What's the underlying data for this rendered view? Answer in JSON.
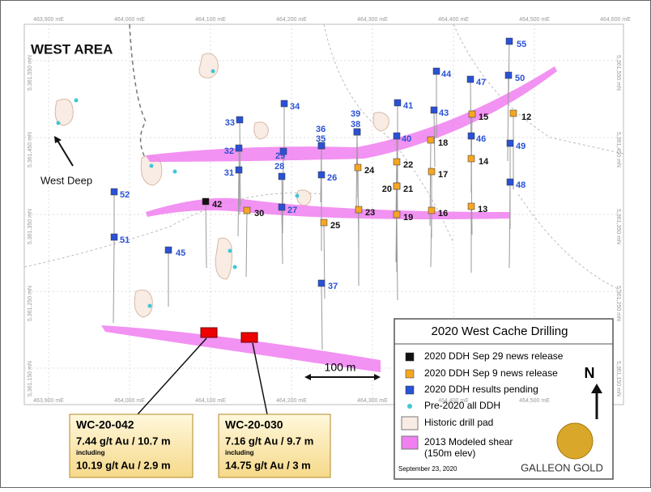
{
  "title": "WEST AREA",
  "grid_labels": {
    "top": [
      "463,900 mE",
      "464,000 mE",
      "464,100 mE",
      "464,200 mE",
      "464,300 mE",
      "464,400 mE",
      "464,500 mE",
      "464,600 mE"
    ],
    "bottom": [
      "463,900 mE",
      "464,000 mE",
      "464,100 mE",
      "464,200 mE",
      "464,300 mE",
      "464,400 mE",
      "464,500 mE"
    ],
    "left": [
      "5,361,550 mN",
      "5,361,450 mN",
      "5,361,350 mN",
      "5,361,250 mN",
      "5,361,150 mN"
    ],
    "right": [
      "5,361,550 mN",
      "5,361,450 mN",
      "5,361,350 mN",
      "5,361,250 mN",
      "5,361,150 mN"
    ]
  },
  "holes": [
    {
      "label": "55",
      "color": "#2a52d6"
    },
    {
      "label": "44",
      "color": "#2a52d6"
    },
    {
      "label": "47",
      "color": "#2a52d6"
    },
    {
      "label": "50",
      "color": "#2a52d6"
    },
    {
      "label": "34",
      "color": "#2a52d6"
    },
    {
      "label": "39",
      "color": "#2a52d6"
    },
    {
      "label": "38",
      "color": "#2a52d6"
    },
    {
      "label": "41",
      "color": "#2a52d6"
    },
    {
      "label": "43",
      "color": "#2a52d6"
    },
    {
      "label": "15",
      "color": "#f5a623"
    },
    {
      "label": "12",
      "color": "#f5a623"
    },
    {
      "label": "33",
      "color": "#2a52d6"
    },
    {
      "label": "36",
      "color": "#2a52d6"
    },
    {
      "label": "35",
      "color": "#2a52d6"
    },
    {
      "label": "40",
      "color": "#2a52d6"
    },
    {
      "label": "18",
      "color": "#f5a623"
    },
    {
      "label": "46",
      "color": "#2a52d6"
    },
    {
      "label": "32",
      "color": "#2a52d6"
    },
    {
      "label": "29",
      "color": "#2a52d6"
    },
    {
      "label": "49",
      "color": "#2a52d6"
    },
    {
      "label": "28",
      "color": "#2a52d6"
    },
    {
      "label": "31",
      "color": "#2a52d6"
    },
    {
      "label": "26",
      "color": "#2a52d6"
    },
    {
      "label": "24",
      "color": "#f5a623"
    },
    {
      "label": "22",
      "color": "#f5a623"
    },
    {
      "label": "17",
      "color": "#f5a623"
    },
    {
      "label": "14",
      "color": "#f5a623"
    },
    {
      "label": "48",
      "color": "#2a52d6"
    },
    {
      "label": "52",
      "color": "#2a52d6"
    },
    {
      "label": "42",
      "color": "#111111"
    },
    {
      "label": "20",
      "color": "#f5a623"
    },
    {
      "label": "21",
      "color": "#f5a623"
    },
    {
      "label": "27",
      "color": "#2a52d6"
    },
    {
      "label": "30",
      "color": "#f5a623"
    },
    {
      "label": "23",
      "color": "#f5a623"
    },
    {
      "label": "19",
      "color": "#f5a623"
    },
    {
      "label": "16",
      "color": "#f5a623"
    },
    {
      "label": "13",
      "color": "#f5a623"
    },
    {
      "label": "25",
      "color": "#f5a623"
    },
    {
      "label": "51",
      "color": "#2a52d6"
    },
    {
      "label": "45",
      "color": "#2a52d6"
    },
    {
      "label": "37",
      "color": "#2a52d6"
    }
  ],
  "west_deep": "West Deep",
  "scale_bar": "100 m",
  "north": "N",
  "callouts": [
    {
      "hole": "WC-20-042",
      "result": "7.44 g/t Au / 10.7 m",
      "including": "including",
      "sub": "10.19 g/t Au / 2.9 m"
    },
    {
      "hole": "WC-20-030",
      "result": "7.16 g/t Au / 9.7 m",
      "including": "including",
      "sub": "14.75 g/t Au / 3 m"
    }
  ],
  "legend": {
    "title": "2020 West Cache Drilling",
    "items": [
      {
        "label": "2020 DDH Sep 29 news release",
        "color": "#111111",
        "shape": "square"
      },
      {
        "label": "2020 DDH Sep 9 news release",
        "color": "#f5a623",
        "shape": "square"
      },
      {
        "label": "2020 DDH results pending",
        "color": "#2a52d6",
        "shape": "square"
      },
      {
        "label": "Pre-2020 all DDH",
        "color": "#3fc7d6",
        "shape": "dot"
      },
      {
        "label": "Historic drill pad",
        "color": "#f8ece4",
        "shape": "rect"
      },
      {
        "label": "2013 Modeled shear",
        "note": "(150m elev)",
        "color": "#f07ff0",
        "shape": "rect"
      }
    ],
    "date": "September 23, 2020",
    "logo": "GALLEON GOLD"
  }
}
